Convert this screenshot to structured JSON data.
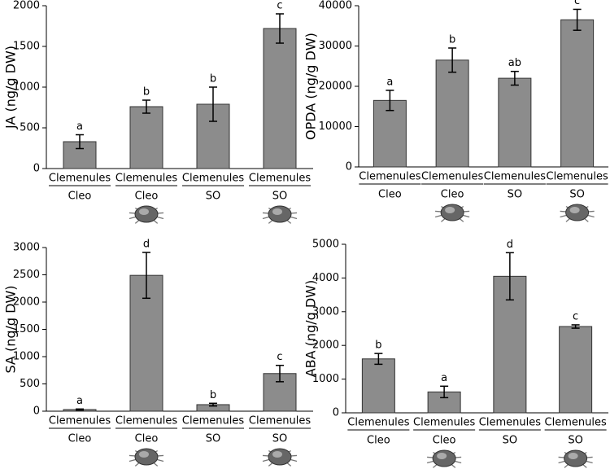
{
  "chart_data": [
    {
      "type": "bar",
      "y_label": "JA (ng/g DW)",
      "categories": [
        "Clemenules",
        "Clemenules",
        "Clemenules",
        "Clemenules"
      ],
      "groups": [
        "Cleo",
        "Cleo",
        "SO",
        "SO"
      ],
      "infested": [
        false,
        true,
        false,
        true
      ],
      "values": [
        330,
        760,
        790,
        1720
      ],
      "errors": [
        85,
        80,
        210,
        180
      ],
      "letters": [
        "a",
        "b",
        "b",
        "c"
      ],
      "color": "#8c8c8c",
      "ylim": [
        0,
        2000
      ],
      "yticks": [
        0,
        500,
        1000,
        1500,
        2000
      ]
    },
    {
      "type": "bar",
      "y_label": "OPDA (ng/g DW)",
      "categories": [
        "Clemenules",
        "Clemenules",
        "Clemenules",
        "Clemenules"
      ],
      "groups": [
        "Cleo",
        "Cleo",
        "SO",
        "SO"
      ],
      "infested": [
        false,
        true,
        false,
        true
      ],
      "values": [
        16500,
        26500,
        22000,
        36500
      ],
      "errors": [
        2500,
        3000,
        1700,
        2600
      ],
      "letters": [
        "a",
        "b",
        "ab",
        "c"
      ],
      "color": "#8c8c8c",
      "ylim": [
        0,
        40000
      ],
      "yticks": [
        0,
        10000,
        20000,
        30000,
        40000
      ]
    },
    {
      "type": "bar",
      "y_label": "SA (ng/g DW)",
      "categories": [
        "Clemenules",
        "Clemenules",
        "Clemenules",
        "Clemenules"
      ],
      "groups": [
        "Cleo",
        "Cleo",
        "SO",
        "SO"
      ],
      "infested": [
        false,
        true,
        false,
        true
      ],
      "values": [
        30,
        2490,
        120,
        690
      ],
      "errors": [
        10,
        420,
        25,
        150
      ],
      "letters": [
        "a",
        "d",
        "b",
        "c"
      ],
      "color": "#8c8c8c",
      "ylim": [
        0,
        3000
      ],
      "yticks": [
        0,
        500,
        1000,
        1500,
        2000,
        2500,
        3000
      ]
    },
    {
      "type": "bar",
      "y_label": "ABA (ng/g DW)",
      "categories": [
        "Clemenules",
        "Clemenules",
        "Clemenules",
        "Clemenules"
      ],
      "groups": [
        "Cleo",
        "Cleo",
        "SO",
        "SO"
      ],
      "infested": [
        false,
        true,
        false,
        true
      ],
      "values": [
        1600,
        620,
        4050,
        2560
      ],
      "errors": [
        160,
        170,
        700,
        50
      ],
      "letters": [
        "b",
        "a",
        "d",
        "c"
      ],
      "color": "#8c8c8c",
      "ylim": [
        0,
        5000
      ],
      "yticks": [
        0,
        1000,
        2000,
        3000,
        4000,
        5000
      ]
    }
  ]
}
